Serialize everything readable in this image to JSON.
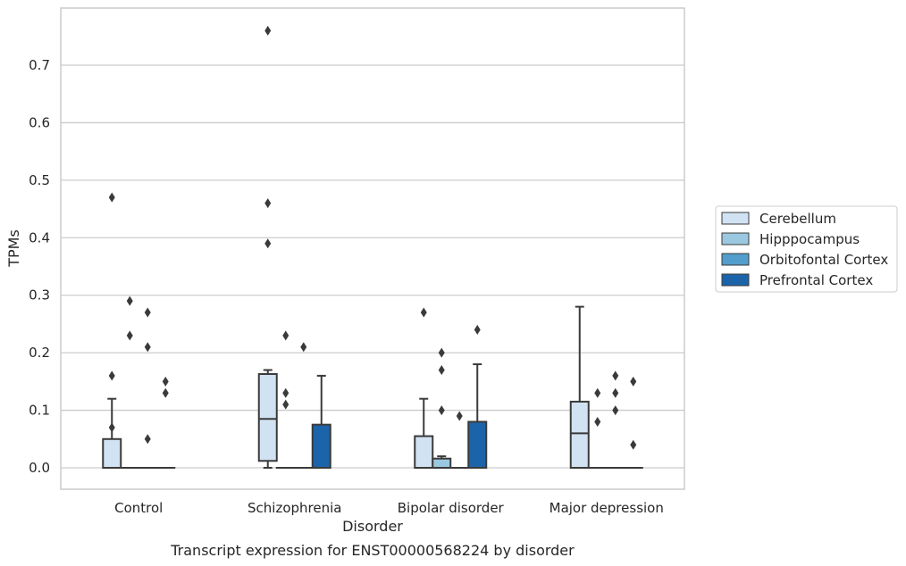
{
  "chart_data": {
    "type": "box",
    "title": "",
    "caption": "Transcript expression for ENST00000568224 by disorder",
    "xlabel": "Disorder",
    "ylabel": "TPMs",
    "categories": [
      "Control",
      "Schizophrenia",
      "Bipolar disorder",
      "Major depression"
    ],
    "ylim": [
      -0.037,
      0.8
    ],
    "yticks": [
      0.0,
      0.1,
      0.2,
      0.3,
      0.4,
      0.5,
      0.6,
      0.7
    ],
    "ytick_labels": [
      "0.0",
      "0.1",
      "0.2",
      "0.3",
      "0.4",
      "0.5",
      "0.6",
      "0.7"
    ],
    "grid": true,
    "legend_position": "right",
    "series": [
      {
        "name": "Cerebellum",
        "color": "#d1e2f2",
        "boxes": [
          {
            "q1": 0.0,
            "median": 0.0,
            "q3": 0.05,
            "whisker_low": 0.0,
            "whisker_high": 0.12,
            "outliers": [
              0.47,
              0.16,
              0.07
            ]
          },
          {
            "q1": 0.012,
            "median": 0.085,
            "q3": 0.163,
            "whisker_low": 0.0,
            "whisker_high": 0.17,
            "outliers": [
              0.76,
              0.46,
              0.39
            ]
          },
          {
            "q1": 0.0,
            "median": 0.0,
            "q3": 0.055,
            "whisker_low": 0.0,
            "whisker_high": 0.12,
            "outliers": [
              0.27
            ]
          },
          {
            "q1": 0.0,
            "median": 0.06,
            "q3": 0.115,
            "whisker_low": 0.0,
            "whisker_high": 0.28,
            "outliers": []
          }
        ]
      },
      {
        "name": "Hipppocampus",
        "color": "#9ac8e0",
        "boxes": [
          {
            "q1": 0.0,
            "median": 0.0,
            "q3": 0.0,
            "whisker_low": 0.0,
            "whisker_high": 0.0,
            "outliers": [
              0.29,
              0.23
            ]
          },
          {
            "q1": 0.0,
            "median": 0.0,
            "q3": 0.0,
            "whisker_low": 0.0,
            "whisker_high": 0.0,
            "outliers": [
              0.23,
              0.13,
              0.11
            ]
          },
          {
            "q1": 0.0,
            "median": 0.0,
            "q3": 0.016,
            "whisker_low": 0.0,
            "whisker_high": 0.02,
            "outliers": [
              0.2,
              0.17,
              0.1
            ]
          },
          {
            "q1": 0.0,
            "median": 0.0,
            "q3": 0.0,
            "whisker_low": 0.0,
            "whisker_high": 0.0,
            "outliers": [
              0.13,
              0.08
            ]
          }
        ]
      },
      {
        "name": "Orbitofontal Cortex",
        "color": "#529dcc",
        "boxes": [
          {
            "q1": 0.0,
            "median": 0.0,
            "q3": 0.0,
            "whisker_low": 0.0,
            "whisker_high": 0.0,
            "outliers": [
              0.27,
              0.21,
              0.05
            ]
          },
          {
            "q1": 0.0,
            "median": 0.0,
            "q3": 0.0,
            "whisker_low": 0.0,
            "whisker_high": 0.0,
            "outliers": [
              0.21
            ]
          },
          {
            "q1": 0.0,
            "median": 0.0,
            "q3": 0.0,
            "whisker_low": 0.0,
            "whisker_high": 0.0,
            "outliers": [
              0.09
            ]
          },
          {
            "q1": 0.0,
            "median": 0.0,
            "q3": 0.0,
            "whisker_low": 0.0,
            "whisker_high": 0.0,
            "outliers": [
              0.16,
              0.13,
              0.1
            ]
          }
        ]
      },
      {
        "name": "Prefrontal Cortex",
        "color": "#1c64a9",
        "boxes": [
          {
            "q1": 0.0,
            "median": 0.0,
            "q3": 0.0,
            "whisker_low": 0.0,
            "whisker_high": 0.0,
            "outliers": [
              0.15,
              0.13
            ]
          },
          {
            "q1": 0.0,
            "median": 0.0,
            "q3": 0.075,
            "whisker_low": 0.0,
            "whisker_high": 0.16,
            "outliers": []
          },
          {
            "q1": 0.0,
            "median": 0.0,
            "q3": 0.08,
            "whisker_low": 0.0,
            "whisker_high": 0.18,
            "outliers": [
              0.24
            ]
          },
          {
            "q1": 0.0,
            "median": 0.0,
            "q3": 0.0,
            "whisker_low": 0.0,
            "whisker_high": 0.0,
            "outliers": [
              0.15,
              0.04
            ]
          }
        ]
      }
    ]
  }
}
